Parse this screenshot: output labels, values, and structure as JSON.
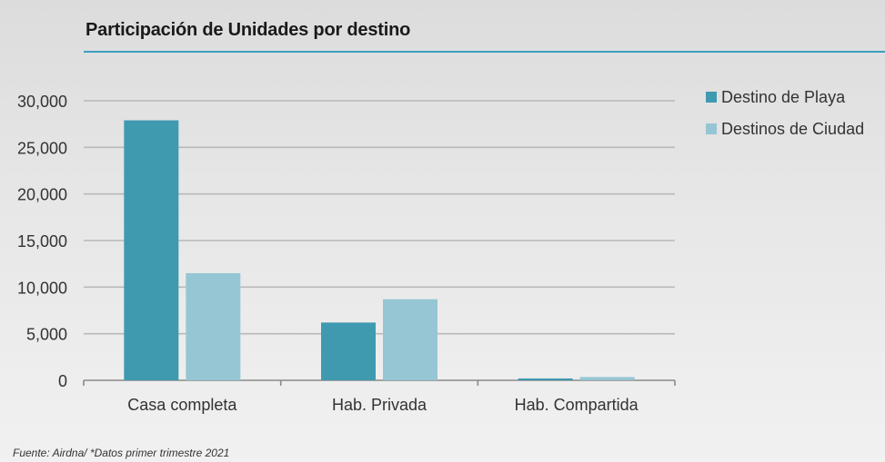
{
  "chart_data": {
    "type": "bar",
    "title": "Participación de Unidades por destino",
    "xlabel": "",
    "ylabel": "",
    "categories": [
      "Casa completa",
      "Hab. Privada",
      "Hab. Compartida"
    ],
    "series": [
      {
        "name": "Destino de Playa",
        "color": "#3f9ab0",
        "values": [
          27900,
          6200,
          200
        ]
      },
      {
        "name": "Destinos de Ciudad",
        "color": "#96c6d4",
        "values": [
          11500,
          8700,
          350
        ]
      }
    ],
    "ylim": [
      0,
      30000
    ],
    "yticks": [
      "0",
      "5,000",
      "10,000",
      "15,000",
      "20,000",
      "25,000",
      "30,000"
    ],
    "grid": true,
    "legend_position": "right"
  },
  "footnote": "Fuente: Airdna/  *Datos primer trimestre 2021"
}
